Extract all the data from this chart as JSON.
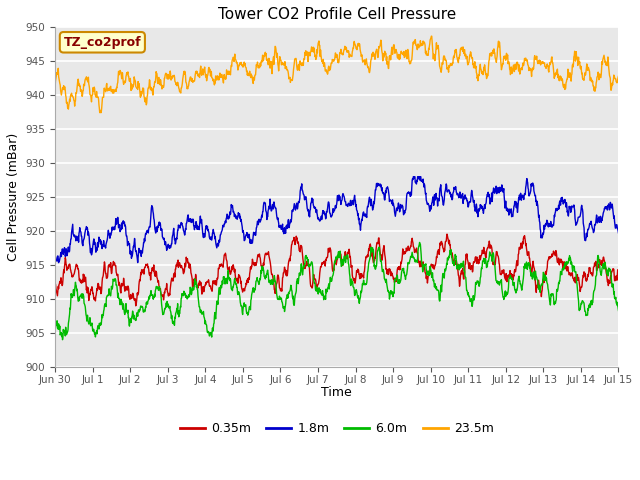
{
  "title": "Tower CO2 Profile Cell Pressure",
  "xlabel": "Time",
  "ylabel": "Cell Pressure (mBar)",
  "ylim": [
    900,
    950
  ],
  "yticks": [
    900,
    905,
    910,
    915,
    920,
    925,
    930,
    935,
    940,
    945,
    950
  ],
  "fig_bg_color": "#ffffff",
  "plot_bg_color": "#e8e8e8",
  "grid_color": "#ffffff",
  "legend_label": "TZ_co2prof",
  "series": {
    "0.35m": {
      "color": "#cc0000"
    },
    "1.8m": {
      "color": "#0000cc"
    },
    "6.0m": {
      "color": "#00bb00"
    },
    "23.5m": {
      "color": "#ffa500"
    }
  },
  "x_tick_labels": [
    "Jun 30",
    "Jul 1",
    "Jul 2",
    "Jul 3",
    "Jul 4",
    "Jul 5",
    "Jul 6",
    "Jul 7",
    "Jul 8",
    "Jul 9",
    "Jul 10",
    "Jul 11",
    "Jul 12",
    "Jul 13",
    "Jul 14",
    "Jul 15"
  ],
  "n_points": 1440,
  "n_days": 15
}
